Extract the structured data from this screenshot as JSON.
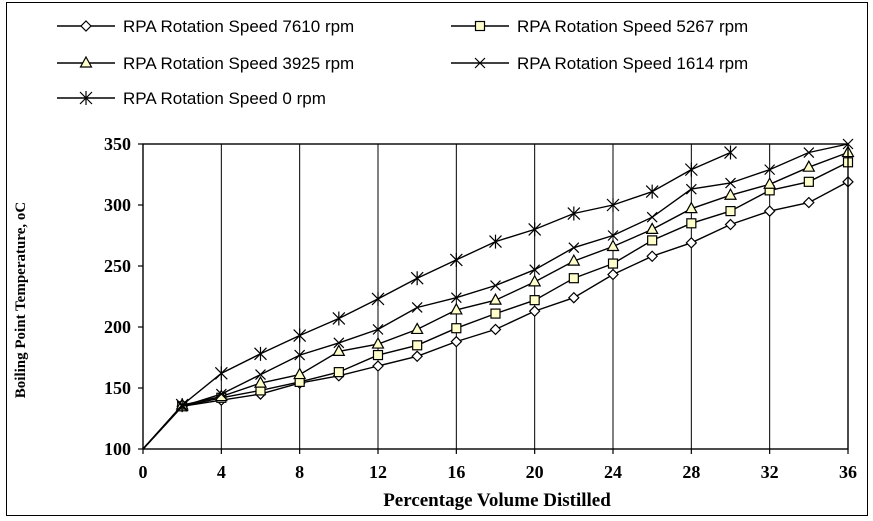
{
  "chart_data": {
    "type": "line",
    "title": "",
    "xlabel": "Percentage Volume Distilled",
    "ylabel": "Boiling Point Temperature, oC",
    "xlim": [
      0,
      36
    ],
    "ylim": [
      100,
      350
    ],
    "xticks": [
      0,
      4,
      8,
      12,
      16,
      20,
      24,
      28,
      32,
      36
    ],
    "yticks": [
      100,
      150,
      200,
      250,
      300,
      350
    ],
    "grid": "vertical",
    "legend_position": "top",
    "series": [
      {
        "name": "RPA Rotation Speed 7610 rpm",
        "marker": "diamond",
        "x": [
          0,
          2,
          4,
          6,
          8,
          10,
          12,
          14,
          16,
          18,
          20,
          22,
          24,
          26,
          28,
          30,
          32,
          34,
          36
        ],
        "y": [
          100,
          135,
          140,
          145,
          154,
          160,
          168,
          176,
          188,
          198,
          213,
          224,
          243,
          258,
          269,
          284,
          295,
          302,
          319
        ]
      },
      {
        "name": "RPA Rotation Speed 5267 rpm",
        "marker": "square",
        "x": [
          0,
          2,
          4,
          6,
          8,
          10,
          12,
          14,
          16,
          18,
          20,
          22,
          24,
          26,
          28,
          30,
          32,
          34,
          36
        ],
        "y": [
          100,
          135,
          142,
          148,
          155,
          163,
          177,
          185,
          199,
          211,
          222,
          240,
          252,
          271,
          285,
          295,
          312,
          319,
          335
        ]
      },
      {
        "name": "RPA Rotation Speed 3925 rpm",
        "marker": "triangle",
        "x": [
          0,
          2,
          4,
          6,
          8,
          10,
          12,
          14,
          16,
          18,
          20,
          22,
          24,
          26,
          28,
          30,
          32,
          34,
          36
        ],
        "y": [
          100,
          136,
          143,
          154,
          161,
          180,
          186,
          198,
          214,
          222,
          237,
          254,
          266,
          280,
          297,
          308,
          317,
          331,
          343
        ]
      },
      {
        "name": "RPA Rotation Speed 1614 rpm",
        "marker": "x",
        "x": [
          0,
          2,
          4,
          6,
          8,
          10,
          12,
          14,
          16,
          18,
          20,
          22,
          24,
          26,
          28,
          30,
          32,
          34,
          36
        ],
        "y": [
          100,
          135,
          145,
          161,
          177,
          187,
          198,
          216,
          224,
          234,
          247,
          265,
          275,
          290,
          313,
          318,
          329,
          343,
          350
        ]
      },
      {
        "name": "RPA Rotation Speed 0 rpm",
        "marker": "asterisk",
        "x": [
          0,
          2,
          4,
          6,
          8,
          10,
          12,
          14,
          16,
          18,
          20,
          22,
          24,
          26,
          28,
          30
        ],
        "y": [
          100,
          136,
          162,
          178,
          193,
          207,
          223,
          240,
          255,
          270,
          280,
          293,
          300,
          311,
          329,
          343
        ]
      }
    ]
  }
}
